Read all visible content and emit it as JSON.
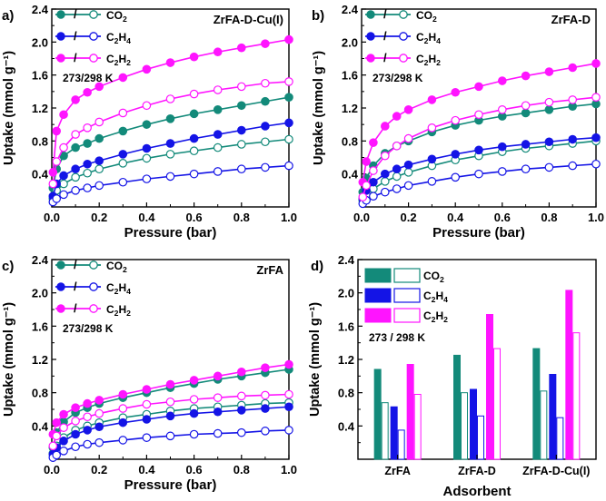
{
  "colors": {
    "co2": "#138a7a",
    "c2h4": "#1414e6",
    "c2h2": "#ff14ff",
    "axis": "#000000"
  },
  "chart_data": [
    {
      "panel": "a)",
      "type": "line",
      "title": "ZrFA-D-Cu(I)",
      "xlabel": "Pressure (bar)",
      "ylabel": "Uptake (mmol g⁻¹)",
      "xlim": [
        0,
        1.0
      ],
      "ylim": [
        0.0,
        2.4
      ],
      "xticks": [
        0.0,
        0.2,
        0.4,
        0.6,
        0.8,
        1.0
      ],
      "yticks": [
        0.4,
        0.8,
        1.2,
        1.6,
        2.0,
        2.4
      ],
      "legend": {
        "position": "top-left",
        "note": "273/298 K",
        "entries": [
          {
            "sep": "/",
            "label": "CO",
            "sub": "2",
            "color": "#138a7a"
          },
          {
            "sep": "/",
            "label": "C",
            "sub": "2",
            "label2": "H",
            "sub2": "4",
            "color": "#1414e6"
          },
          {
            "sep": "/",
            "label": "C",
            "sub": "2",
            "label2": "H",
            "sub2": "2",
            "color": "#ff14ff"
          }
        ]
      },
      "series": [
        {
          "gas": "CO2",
          "temp": "273 K",
          "filled": true,
          "color": "#138a7a",
          "x": [
            0.005,
            0.02,
            0.05,
            0.1,
            0.15,
            0.2,
            0.3,
            0.4,
            0.5,
            0.6,
            0.7,
            0.8,
            0.9,
            1.0
          ],
          "y": [
            0.23,
            0.46,
            0.62,
            0.72,
            0.77,
            0.83,
            0.92,
            1.0,
            1.07,
            1.13,
            1.18,
            1.23,
            1.28,
            1.33
          ]
        },
        {
          "gas": "CO2",
          "temp": "298 K",
          "filled": false,
          "color": "#138a7a",
          "x": [
            0.005,
            0.02,
            0.05,
            0.1,
            0.15,
            0.2,
            0.3,
            0.4,
            0.5,
            0.6,
            0.7,
            0.8,
            0.9,
            1.0
          ],
          "y": [
            0.1,
            0.2,
            0.28,
            0.36,
            0.41,
            0.46,
            0.53,
            0.59,
            0.64,
            0.68,
            0.72,
            0.76,
            0.79,
            0.82
          ]
        },
        {
          "gas": "C2H4",
          "temp": "273 K",
          "filled": true,
          "color": "#1414e6",
          "x": [
            0.005,
            0.02,
            0.05,
            0.1,
            0.15,
            0.2,
            0.3,
            0.4,
            0.5,
            0.6,
            0.7,
            0.8,
            0.9,
            1.0
          ],
          "y": [
            0.13,
            0.28,
            0.38,
            0.46,
            0.52,
            0.56,
            0.64,
            0.71,
            0.77,
            0.83,
            0.88,
            0.93,
            0.98,
            1.02
          ]
        },
        {
          "gas": "C2H4",
          "temp": "298 K",
          "filled": false,
          "color": "#1414e6",
          "x": [
            0.005,
            0.02,
            0.05,
            0.1,
            0.15,
            0.2,
            0.3,
            0.4,
            0.5,
            0.6,
            0.7,
            0.8,
            0.9,
            1.0
          ],
          "y": [
            0.06,
            0.1,
            0.15,
            0.2,
            0.23,
            0.26,
            0.3,
            0.34,
            0.37,
            0.4,
            0.43,
            0.46,
            0.48,
            0.5
          ]
        },
        {
          "gas": "C2H2",
          "temp": "273 K",
          "filled": true,
          "color": "#ff14ff",
          "x": [
            0.005,
            0.02,
            0.05,
            0.1,
            0.15,
            0.2,
            0.3,
            0.4,
            0.5,
            0.6,
            0.7,
            0.8,
            0.9,
            1.0
          ],
          "y": [
            0.42,
            0.92,
            1.12,
            1.3,
            1.39,
            1.46,
            1.57,
            1.67,
            1.75,
            1.82,
            1.88,
            1.93,
            1.98,
            2.03
          ]
        },
        {
          "gas": "C2H2",
          "temp": "298 K",
          "filled": false,
          "color": "#ff14ff",
          "x": [
            0.005,
            0.02,
            0.05,
            0.1,
            0.15,
            0.2,
            0.3,
            0.4,
            0.5,
            0.6,
            0.7,
            0.8,
            0.9,
            1.0
          ],
          "y": [
            0.28,
            0.55,
            0.72,
            0.88,
            0.96,
            1.03,
            1.14,
            1.23,
            1.31,
            1.37,
            1.42,
            1.46,
            1.5,
            1.52
          ]
        }
      ]
    },
    {
      "panel": "b)",
      "type": "line",
      "title": "ZrFA-D",
      "xlabel": "Pressure (bar)",
      "ylabel": "Uptake (mmol g⁻¹)",
      "xlim": [
        0,
        1.0
      ],
      "ylim": [
        0.0,
        2.4
      ],
      "xticks": [
        0.0,
        0.2,
        0.4,
        0.6,
        0.8,
        1.0
      ],
      "yticks": [
        0.4,
        0.8,
        1.2,
        1.6,
        2.0,
        2.4
      ],
      "legend": {
        "position": "top-left",
        "note": "273/298 K",
        "entries": [
          {
            "sep": "/",
            "label": "CO",
            "sub": "2",
            "color": "#138a7a"
          },
          {
            "sep": "/",
            "label": "C",
            "sub": "2",
            "label2": "H",
            "sub2": "4",
            "color": "#1414e6"
          },
          {
            "sep": "/",
            "label": "C",
            "sub": "2",
            "label2": "H",
            "sub2": "2",
            "color": "#ff14ff"
          }
        ]
      },
      "series": [
        {
          "gas": "CO2",
          "temp": "273 K",
          "filled": true,
          "color": "#138a7a",
          "x": [
            0.005,
            0.02,
            0.05,
            0.1,
            0.15,
            0.2,
            0.3,
            0.4,
            0.5,
            0.6,
            0.7,
            0.8,
            0.9,
            1.0
          ],
          "y": [
            0.18,
            0.35,
            0.5,
            0.65,
            0.74,
            0.8,
            0.91,
            0.99,
            1.05,
            1.1,
            1.14,
            1.18,
            1.22,
            1.25
          ]
        },
        {
          "gas": "CO2",
          "temp": "298 K",
          "filled": false,
          "color": "#138a7a",
          "x": [
            0.005,
            0.02,
            0.05,
            0.1,
            0.15,
            0.2,
            0.3,
            0.4,
            0.5,
            0.6,
            0.7,
            0.8,
            0.9,
            1.0
          ],
          "y": [
            0.08,
            0.15,
            0.22,
            0.31,
            0.37,
            0.42,
            0.5,
            0.57,
            0.62,
            0.67,
            0.71,
            0.74,
            0.77,
            0.8
          ]
        },
        {
          "gas": "C2H4",
          "temp": "273 K",
          "filled": true,
          "color": "#1414e6",
          "x": [
            0.005,
            0.02,
            0.05,
            0.1,
            0.15,
            0.2,
            0.3,
            0.4,
            0.5,
            0.6,
            0.7,
            0.8,
            0.9,
            1.0
          ],
          "y": [
            0.1,
            0.2,
            0.3,
            0.4,
            0.46,
            0.51,
            0.58,
            0.64,
            0.69,
            0.73,
            0.76,
            0.79,
            0.82,
            0.84
          ]
        },
        {
          "gas": "C2H4",
          "temp": "298 K",
          "filled": false,
          "color": "#1414e6",
          "x": [
            0.005,
            0.02,
            0.05,
            0.1,
            0.15,
            0.2,
            0.3,
            0.4,
            0.5,
            0.6,
            0.7,
            0.8,
            0.9,
            1.0
          ],
          "y": [
            0.04,
            0.08,
            0.13,
            0.18,
            0.22,
            0.26,
            0.31,
            0.36,
            0.4,
            0.43,
            0.46,
            0.48,
            0.5,
            0.52
          ]
        },
        {
          "gas": "C2H2",
          "temp": "273 K",
          "filled": true,
          "color": "#ff14ff",
          "x": [
            0.005,
            0.02,
            0.05,
            0.1,
            0.15,
            0.2,
            0.3,
            0.4,
            0.5,
            0.6,
            0.7,
            0.8,
            0.9,
            1.0
          ],
          "y": [
            0.3,
            0.55,
            0.78,
            0.98,
            1.1,
            1.18,
            1.3,
            1.39,
            1.46,
            1.53,
            1.59,
            1.64,
            1.69,
            1.74
          ]
        },
        {
          "gas": "C2H2",
          "temp": "298 K",
          "filled": false,
          "color": "#ff14ff",
          "x": [
            0.005,
            0.02,
            0.05,
            0.1,
            0.15,
            0.2,
            0.3,
            0.4,
            0.5,
            0.6,
            0.7,
            0.8,
            0.9,
            1.0
          ],
          "y": [
            0.12,
            0.26,
            0.44,
            0.62,
            0.74,
            0.83,
            0.96,
            1.05,
            1.12,
            1.18,
            1.23,
            1.27,
            1.3,
            1.33
          ]
        }
      ]
    },
    {
      "panel": "c)",
      "type": "line",
      "title": "ZrFA",
      "xlabel": "Pressure (bar)",
      "ylabel": "Uptake (mmol g⁻¹)",
      "xlim": [
        0,
        1.0
      ],
      "ylim": [
        0.0,
        2.4
      ],
      "xticks": [
        0.0,
        0.2,
        0.4,
        0.6,
        0.8,
        1.0
      ],
      "yticks": [
        0.4,
        0.8,
        1.2,
        1.6,
        2.0,
        2.4
      ],
      "legend": {
        "position": "top-left",
        "note": "273/298 K",
        "entries": [
          {
            "sep": "/",
            "label": "CO",
            "sub": "2",
            "color": "#138a7a"
          },
          {
            "sep": "/",
            "label": "C",
            "sub": "2",
            "label2": "H",
            "sub2": "4",
            "color": "#1414e6"
          },
          {
            "sep": "/",
            "label": "C",
            "sub": "2",
            "label2": "H",
            "sub2": "2",
            "color": "#ff14ff"
          }
        ]
      },
      "series": [
        {
          "gas": "CO2",
          "temp": "273 K",
          "filled": true,
          "color": "#138a7a",
          "x": [
            0.005,
            0.02,
            0.05,
            0.1,
            0.15,
            0.2,
            0.3,
            0.4,
            0.5,
            0.6,
            0.7,
            0.8,
            0.9,
            1.0
          ],
          "y": [
            0.14,
            0.32,
            0.45,
            0.56,
            0.62,
            0.67,
            0.74,
            0.8,
            0.86,
            0.91,
            0.96,
            1.0,
            1.04,
            1.08
          ]
        },
        {
          "gas": "CO2",
          "temp": "298 K",
          "filled": false,
          "color": "#138a7a",
          "x": [
            0.005,
            0.02,
            0.05,
            0.1,
            0.15,
            0.2,
            0.3,
            0.4,
            0.5,
            0.6,
            0.7,
            0.8,
            0.9,
            1.0
          ],
          "y": [
            0.07,
            0.16,
            0.26,
            0.35,
            0.4,
            0.44,
            0.5,
            0.54,
            0.58,
            0.61,
            0.63,
            0.65,
            0.67,
            0.68
          ]
        },
        {
          "gas": "C2H4",
          "temp": "273 K",
          "filled": true,
          "color": "#1414e6",
          "x": [
            0.005,
            0.02,
            0.05,
            0.1,
            0.15,
            0.2,
            0.3,
            0.4,
            0.5,
            0.6,
            0.7,
            0.8,
            0.9,
            1.0
          ],
          "y": [
            0.06,
            0.14,
            0.22,
            0.3,
            0.35,
            0.39,
            0.44,
            0.48,
            0.52,
            0.55,
            0.57,
            0.59,
            0.61,
            0.63
          ]
        },
        {
          "gas": "C2H4",
          "temp": "298 K",
          "filled": false,
          "color": "#1414e6",
          "x": [
            0.005,
            0.02,
            0.05,
            0.1,
            0.15,
            0.2,
            0.3,
            0.4,
            0.5,
            0.6,
            0.7,
            0.8,
            0.9,
            1.0
          ],
          "y": [
            0.02,
            0.05,
            0.1,
            0.15,
            0.18,
            0.2,
            0.23,
            0.26,
            0.28,
            0.3,
            0.31,
            0.32,
            0.34,
            0.35
          ]
        },
        {
          "gas": "C2H2",
          "temp": "273 K",
          "filled": true,
          "color": "#ff14ff",
          "x": [
            0.005,
            0.02,
            0.05,
            0.1,
            0.15,
            0.2,
            0.3,
            0.4,
            0.5,
            0.6,
            0.7,
            0.8,
            0.9,
            1.0
          ],
          "y": [
            0.3,
            0.44,
            0.54,
            0.62,
            0.67,
            0.71,
            0.78,
            0.84,
            0.9,
            0.95,
            1.0,
            1.05,
            1.1,
            1.14
          ]
        },
        {
          "gas": "C2H2",
          "temp": "298 K",
          "filled": false,
          "color": "#ff14ff",
          "x": [
            0.005,
            0.02,
            0.05,
            0.1,
            0.15,
            0.2,
            0.3,
            0.4,
            0.5,
            0.6,
            0.7,
            0.8,
            0.9,
            1.0
          ],
          "y": [
            0.16,
            0.28,
            0.38,
            0.46,
            0.51,
            0.55,
            0.61,
            0.66,
            0.69,
            0.72,
            0.74,
            0.76,
            0.77,
            0.78
          ]
        }
      ]
    },
    {
      "panel": "d)",
      "type": "bar",
      "xlabel": "Adsorbent",
      "ylabel": "Uptake (mmol g⁻¹)",
      "ylim": [
        0.0,
        2.4
      ],
      "yticks": [
        0.4,
        0.8,
        1.2,
        1.6,
        2.0,
        2.4
      ],
      "categories": [
        "ZrFA",
        "ZrFA-D",
        "ZrFA-D-Cu(I)"
      ],
      "legend": {
        "position": "top-left",
        "note": "273 / 298 K",
        "entries": [
          {
            "label": "CO",
            "sub": "2",
            "color": "#138a7a"
          },
          {
            "label": "C",
            "sub": "2",
            "label2": "H",
            "sub2": "4",
            "color": "#1414e6"
          },
          {
            "label": "C",
            "sub": "2",
            "label2": "H",
            "sub2": "2",
            "color": "#ff14ff"
          }
        ]
      },
      "series": [
        {
          "gas": "CO2",
          "temp": "273 K",
          "filled": true,
          "color": "#138a7a",
          "values": [
            1.08,
            1.25,
            1.33
          ]
        },
        {
          "gas": "CO2",
          "temp": "298 K",
          "filled": false,
          "color": "#138a7a",
          "values": [
            0.68,
            0.8,
            0.82
          ]
        },
        {
          "gas": "C2H4",
          "temp": "273 K",
          "filled": true,
          "color": "#1414e6",
          "values": [
            0.63,
            0.84,
            1.02
          ]
        },
        {
          "gas": "C2H4",
          "temp": "298 K",
          "filled": false,
          "color": "#1414e6",
          "values": [
            0.35,
            0.52,
            0.5
          ]
        },
        {
          "gas": "C2H2",
          "temp": "273 K",
          "filled": true,
          "color": "#ff14ff",
          "values": [
            1.14,
            1.74,
            2.03
          ]
        },
        {
          "gas": "C2H2",
          "temp": "298 K",
          "filled": false,
          "color": "#ff14ff",
          "values": [
            0.78,
            1.33,
            1.52
          ]
        }
      ]
    }
  ]
}
